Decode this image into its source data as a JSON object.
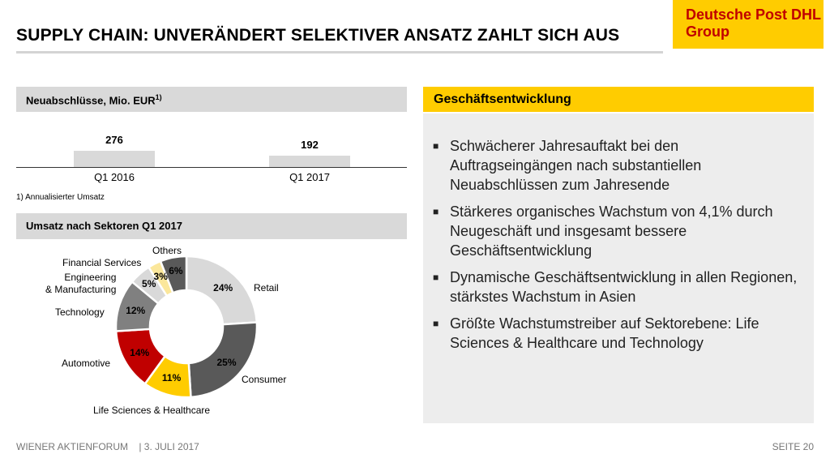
{
  "title": "SUPPLY CHAIN: UNVERÄNDERT SELEKTIVER ANSATZ ZAHLT SICH AUS",
  "logo": {
    "line1": "Deutsche Post DHL",
    "line2": "Group"
  },
  "neuabschluesse": {
    "heading": "Neuabschlüsse, Mio. EUR",
    "sup": "1)",
    "footnote": "1) Annualisierter Umsatz"
  },
  "sektoren": {
    "heading": "Umsatz nach Sektoren Q1 2017"
  },
  "chart_data": [
    {
      "type": "bar",
      "categories": [
        "Q1 2016",
        "Q1 2017"
      ],
      "values": [
        276,
        192
      ],
      "data_labels": [
        "276",
        "192"
      ],
      "title": "Neuabschlüsse, Mio. EUR"
    },
    {
      "type": "pie",
      "variant": "donut",
      "title": "Umsatz nach Sektoren Q1 2017",
      "slices": [
        {
          "label": "Retail",
          "value": 24,
          "text": "24%",
          "color": "#d9d9d9"
        },
        {
          "label": "Consumer",
          "value": 25,
          "text": "25%",
          "color": "#595959"
        },
        {
          "label": "Life Sciences & Healthcare",
          "value": 11,
          "text": "11%",
          "color": "#ffcc00"
        },
        {
          "label": "Automotive",
          "value": 14,
          "text": "14%",
          "color": "#c00000"
        },
        {
          "label": "Technology",
          "value": 12,
          "text": "12%",
          "color": "#808080"
        },
        {
          "label": "Engineering\n& Manufacturing",
          "value": 5,
          "text": "5%",
          "color": "#d9d9d9"
        },
        {
          "label": "Financial Services",
          "value": 3,
          "text": "3%",
          "color": "#fbe79b"
        },
        {
          "label": "Others",
          "value": 6,
          "text": "6%",
          "color": "#595959"
        }
      ]
    }
  ],
  "geschaeft": {
    "heading": "Geschäftsentwicklung",
    "bullets": [
      "Schwächerer Jahresauftakt bei den Auftragseingängen nach substantiellen Neuabschlüssen zum Jahresende",
      "Stärkeres organisches Wachstum von 4,1% durch Neugeschäft und insgesamt bessere Geschäftsentwicklung",
      "Dynamische Geschäftsentwicklung in allen Regionen, stärkstes Wachstum in Asien",
      "Größte Wachstumstreiber auf Sektorebene: Life Sciences & Healthcare und Technology"
    ]
  },
  "footer": {
    "left": "WIENER AKTIENFORUM    | 3. JULI 2017",
    "right": "SEITE 20"
  }
}
